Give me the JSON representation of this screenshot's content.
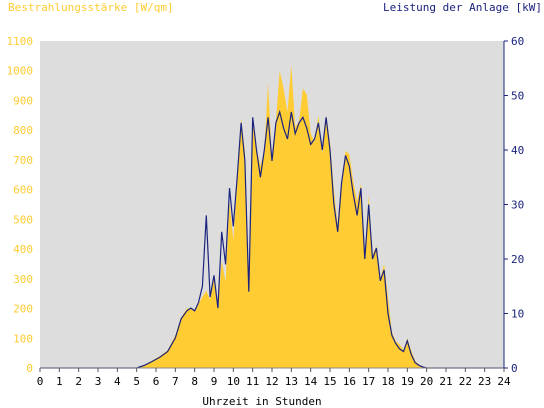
{
  "chart_data": {
    "type": "area",
    "left_axis_title": "Bestrahlungsstärke [W/qm]",
    "right_axis_title": "Leistung der Anlage [kW]",
    "xlabel": "Uhrzeit in Stunden",
    "xlim": [
      0,
      24
    ],
    "ylim_left": [
      0,
      1100
    ],
    "ylim_right": [
      0,
      60
    ],
    "x_ticks": [
      "0",
      "1",
      "2",
      "3",
      "4",
      "5",
      "6",
      "7",
      "8",
      "9",
      "10",
      "11",
      "12",
      "13",
      "14",
      "15",
      "16",
      "17",
      "18",
      "19",
      "20",
      "21",
      "22",
      "23",
      "24"
    ],
    "y_left_ticks": [
      "0",
      "100",
      "200",
      "300",
      "400",
      "500",
      "600",
      "700",
      "800",
      "900",
      "1000",
      "1100"
    ],
    "y_right_ticks": [
      "0",
      "10",
      "20",
      "30",
      "40",
      "50",
      "60"
    ],
    "grid": false,
    "colors": {
      "irradiance": "#ffcc33",
      "power": "#1a237e",
      "plot_bg": "#dddddd"
    },
    "series": [
      {
        "name": "Bestrahlungsstärke",
        "axis": "left",
        "x": [
          5.0,
          5.4,
          5.8,
          6.2,
          6.6,
          7.0,
          7.3,
          7.6,
          7.8,
          8.0,
          8.2,
          8.4,
          8.6,
          8.8,
          9.0,
          9.2,
          9.4,
          9.6,
          9.8,
          10.0,
          10.2,
          10.4,
          10.6,
          10.8,
          11.0,
          11.2,
          11.4,
          11.6,
          11.8,
          12.0,
          12.2,
          12.4,
          12.6,
          12.8,
          13.0,
          13.2,
          13.4,
          13.6,
          13.8,
          14.0,
          14.2,
          14.4,
          14.6,
          14.8,
          15.0,
          15.2,
          15.4,
          15.6,
          15.8,
          16.0,
          16.2,
          16.4,
          16.6,
          16.8,
          17.0,
          17.2,
          17.4,
          17.6,
          17.8,
          18.0,
          18.2,
          18.4,
          18.6,
          18.8,
          19.0,
          19.2,
          19.4,
          19.6,
          19.8,
          20.0,
          20.2
        ],
        "values": [
          0,
          10,
          25,
          40,
          60,
          110,
          170,
          200,
          200,
          190,
          215,
          240,
          260,
          230,
          310,
          200,
          360,
          290,
          560,
          430,
          620,
          840,
          730,
          250,
          840,
          740,
          680,
          730,
          960,
          690,
          830,
          1000,
          940,
          860,
          1020,
          810,
          830,
          940,
          920,
          790,
          760,
          850,
          720,
          850,
          760,
          600,
          480,
          620,
          730,
          720,
          630,
          560,
          620,
          380,
          580,
          380,
          410,
          300,
          350,
          240,
          120,
          90,
          80,
          60,
          100,
          60,
          25,
          10,
          5,
          0,
          0
        ]
      },
      {
        "name": "Leistung der Anlage",
        "axis": "right",
        "x": [
          5.0,
          5.4,
          5.8,
          6.2,
          6.6,
          7.0,
          7.3,
          7.6,
          7.8,
          8.0,
          8.2,
          8.4,
          8.6,
          8.8,
          9.0,
          9.2,
          9.4,
          9.6,
          9.8,
          10.0,
          10.2,
          10.4,
          10.6,
          10.8,
          11.0,
          11.2,
          11.4,
          11.6,
          11.8,
          12.0,
          12.2,
          12.4,
          12.6,
          12.8,
          13.0,
          13.2,
          13.4,
          13.6,
          13.8,
          14.0,
          14.2,
          14.4,
          14.6,
          14.8,
          15.0,
          15.2,
          15.4,
          15.6,
          15.8,
          16.0,
          16.2,
          16.4,
          16.6,
          16.8,
          17.0,
          17.2,
          17.4,
          17.6,
          17.8,
          18.0,
          18.2,
          18.4,
          18.6,
          18.8,
          19.0,
          19.2,
          19.4,
          19.6,
          19.8,
          20.0,
          20.2
        ],
        "values": [
          0,
          0.5,
          1.2,
          2.0,
          3.0,
          5.5,
          9.0,
          10.5,
          11.0,
          10.5,
          12.0,
          15.0,
          28.0,
          13.0,
          17.0,
          11.0,
          25.0,
          19.0,
          33.0,
          26.0,
          35.0,
          45.0,
          38.0,
          14.0,
          46.0,
          40.0,
          35.0,
          40.0,
          46.0,
          38.0,
          45.0,
          47.0,
          44.0,
          42.0,
          47.0,
          43.0,
          45.0,
          46.0,
          44.0,
          41.0,
          42.0,
          45.0,
          40.0,
          46.0,
          40.0,
          30.0,
          25.0,
          34.0,
          39.0,
          37.0,
          32.0,
          28.0,
          33.0,
          20.0,
          30.0,
          20.0,
          22.0,
          16.0,
          18.0,
          10.0,
          6.0,
          4.5,
          3.5,
          3.0,
          5.0,
          2.5,
          1.0,
          0.5,
          0.2,
          0,
          0
        ]
      }
    ]
  }
}
